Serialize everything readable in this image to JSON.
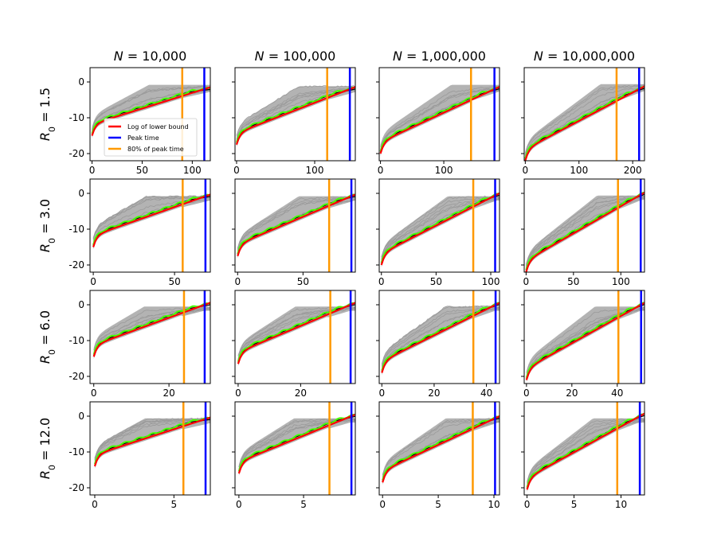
{
  "figure": {
    "columns": [
      {
        "label": "N = 10,000",
        "var": "N",
        "value": "10,000"
      },
      {
        "label": "N = 100,000",
        "var": "N",
        "value": "100,000"
      },
      {
        "label": "N = 1,000,000",
        "var": "N",
        "value": "1,000,000"
      },
      {
        "label": "N = 10,000,000",
        "var": "N",
        "value": "10,000,000"
      }
    ],
    "rows": [
      {
        "label": "R0 = 1.5",
        "value": "1.5"
      },
      {
        "label": "R0 = 3.0",
        "value": "3.0"
      },
      {
        "label": "R0 = 6.0",
        "value": "6.0"
      },
      {
        "label": "R0 = 12.0",
        "value": "12.0"
      }
    ],
    "legend": [
      {
        "label": "Log of lower bound",
        "color": "#ff0000"
      },
      {
        "label": "Peak time",
        "color": "#0000ff"
      },
      {
        "label": "80% of peak time",
        "color": "#ff9900"
      }
    ]
  },
  "chart_data": {
    "type": "line",
    "layout": "4x4 grid of subplots",
    "colors": {
      "simulations": "#a6a6a6",
      "green_curve": "#44ff00",
      "black_curve": "#000000",
      "log_lower_bound": "#ff0000",
      "peak_time": "#0000ff",
      "eighty_percent_peak": "#ff9900"
    },
    "ylim": [
      -22,
      4
    ],
    "yticks": [
      0,
      -10,
      -20
    ],
    "panels": [
      {
        "row": 0,
        "col": 0,
        "xlim": [
          -2,
          118
        ],
        "xticks": [
          0,
          50,
          100
        ],
        "peak_time": 112,
        "peak80": 90,
        "y_start": -15,
        "y_lower_end": -2,
        "y_sim_top": -0.8
      },
      {
        "row": 0,
        "col": 1,
        "xlim": [
          -2,
          152
        ],
        "xticks": [
          0,
          100
        ],
        "peak_time": 145,
        "peak80": 116,
        "y_start": -17.5,
        "y_lower_end": -2,
        "y_sim_top": -1.2
      },
      {
        "row": 0,
        "col": 2,
        "xlim": [
          -2,
          188
        ],
        "xticks": [
          0,
          100
        ],
        "peak_time": 180,
        "peak80": 143,
        "y_start": -20,
        "y_lower_end": -2,
        "y_sim_top": -0.8
      },
      {
        "row": 0,
        "col": 3,
        "xlim": [
          -2,
          222
        ],
        "xticks": [
          0,
          100,
          200
        ],
        "peak_time": 212,
        "peak80": 170,
        "y_start": -22,
        "y_lower_end": -2,
        "y_sim_top": -0.6
      },
      {
        "row": 1,
        "col": 0,
        "xlim": [
          -2,
          72
        ],
        "xticks": [
          0,
          50
        ],
        "peak_time": 69,
        "peak80": 55,
        "y_start": -15,
        "y_lower_end": -0.8,
        "y_sim_top": -0.8
      },
      {
        "row": 1,
        "col": 1,
        "xlim": [
          -2,
          90
        ],
        "xticks": [
          0,
          50
        ],
        "peak_time": 87,
        "peak80": 70,
        "y_start": -17.5,
        "y_lower_end": -0.8,
        "y_sim_top": -0.8
      },
      {
        "row": 1,
        "col": 2,
        "xlim": [
          -2,
          108
        ],
        "xticks": [
          0,
          50,
          100
        ],
        "peak_time": 104,
        "peak80": 84,
        "y_start": -20,
        "y_lower_end": -0.6,
        "y_sim_top": -0.8
      },
      {
        "row": 1,
        "col": 3,
        "xlim": [
          -2,
          125
        ],
        "xticks": [
          0,
          50,
          100
        ],
        "peak_time": 121,
        "peak80": 97,
        "y_start": -22,
        "y_lower_end": -0.4,
        "y_sim_top": -0.6
      },
      {
        "row": 2,
        "col": 0,
        "xlim": [
          -1,
          31
        ],
        "xticks": [
          0,
          20
        ],
        "peak_time": 29.5,
        "peak80": 24,
        "y_start": -14.5,
        "y_lower_end": 0,
        "y_sim_top": -0.5
      },
      {
        "row": 2,
        "col": 1,
        "xlim": [
          -1,
          37.5
        ],
        "xticks": [
          0,
          20
        ],
        "peak_time": 36,
        "peak80": 29.5,
        "y_start": -16.5,
        "y_lower_end": 0,
        "y_sim_top": -0.5
      },
      {
        "row": 2,
        "col": 2,
        "xlim": [
          -1,
          45
        ],
        "xticks": [
          0,
          20,
          40
        ],
        "peak_time": 43.5,
        "peak80": 35,
        "y_start": -19,
        "y_lower_end": 0,
        "y_sim_top": -0.5
      },
      {
        "row": 2,
        "col": 3,
        "xlim": [
          -1,
          52
        ],
        "xticks": [
          0,
          20,
          40
        ],
        "peak_time": 50.5,
        "peak80": 40.5,
        "y_start": -21,
        "y_lower_end": 0,
        "y_sim_top": -0.5
      },
      {
        "row": 3,
        "col": 0,
        "xlim": [
          -0.3,
          7.3
        ],
        "xticks": [
          0,
          5
        ],
        "peak_time": 7,
        "peak80": 5.6,
        "y_start": -14,
        "y_lower_end": -0.8,
        "y_sim_top": -0.6
      },
      {
        "row": 3,
        "col": 1,
        "xlim": [
          -0.3,
          9.0
        ],
        "xticks": [
          0,
          5
        ],
        "peak_time": 8.7,
        "peak80": 7,
        "y_start": -16,
        "y_lower_end": 0,
        "y_sim_top": -0.6
      },
      {
        "row": 3,
        "col": 2,
        "xlim": [
          -0.3,
          10.5
        ],
        "xticks": [
          0,
          5,
          10
        ],
        "peak_time": 10.1,
        "peak80": 8.1,
        "y_start": -18.5,
        "y_lower_end": -0.6,
        "y_sim_top": -0.6
      },
      {
        "row": 3,
        "col": 3,
        "xlim": [
          -0.3,
          12.5
        ],
        "xticks": [
          0,
          5,
          10
        ],
        "peak_time": 12,
        "peak80": 9.6,
        "y_start": -20.5,
        "y_lower_end": 0,
        "y_sim_top": -0.6
      }
    ]
  }
}
